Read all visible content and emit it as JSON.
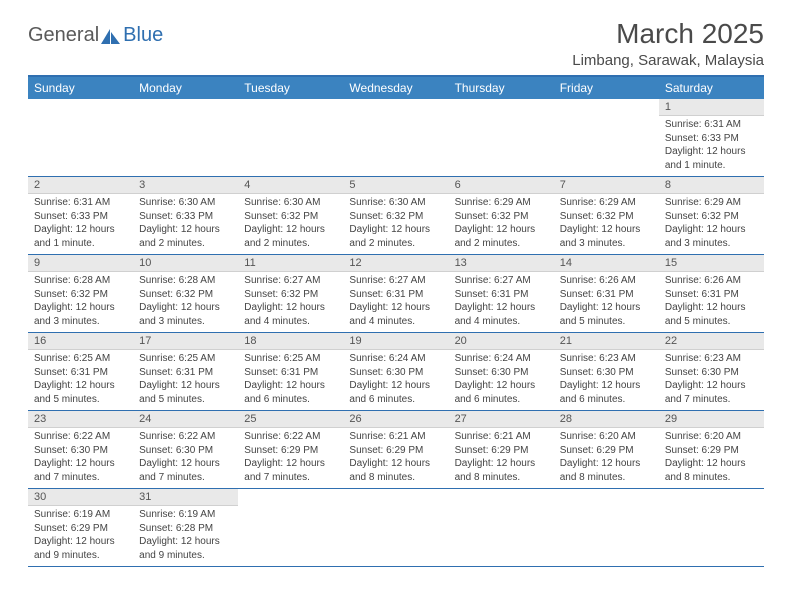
{
  "logo": {
    "part1": "General",
    "part2": "Blue",
    "icon_color": "#2f6fb0"
  },
  "title": "March 2025",
  "location": "Limbang, Sarawak, Malaysia",
  "day_headers": [
    "Sunday",
    "Monday",
    "Tuesday",
    "Wednesday",
    "Thursday",
    "Friday",
    "Saturday"
  ],
  "colors": {
    "header_bg": "#3b83c0",
    "header_text": "#ffffff",
    "rule": "#2f6fb0",
    "daynum_bg": "#e9e9e9"
  },
  "weeks": [
    [
      {
        "n": "",
        "sunrise": "",
        "sunset": "",
        "daylight": ""
      },
      {
        "n": "",
        "sunrise": "",
        "sunset": "",
        "daylight": ""
      },
      {
        "n": "",
        "sunrise": "",
        "sunset": "",
        "daylight": ""
      },
      {
        "n": "",
        "sunrise": "",
        "sunset": "",
        "daylight": ""
      },
      {
        "n": "",
        "sunrise": "",
        "sunset": "",
        "daylight": ""
      },
      {
        "n": "",
        "sunrise": "",
        "sunset": "",
        "daylight": ""
      },
      {
        "n": "1",
        "sunrise": "Sunrise: 6:31 AM",
        "sunset": "Sunset: 6:33 PM",
        "daylight": "Daylight: 12 hours and 1 minute."
      }
    ],
    [
      {
        "n": "2",
        "sunrise": "Sunrise: 6:31 AM",
        "sunset": "Sunset: 6:33 PM",
        "daylight": "Daylight: 12 hours and 1 minute."
      },
      {
        "n": "3",
        "sunrise": "Sunrise: 6:30 AM",
        "sunset": "Sunset: 6:33 PM",
        "daylight": "Daylight: 12 hours and 2 minutes."
      },
      {
        "n": "4",
        "sunrise": "Sunrise: 6:30 AM",
        "sunset": "Sunset: 6:32 PM",
        "daylight": "Daylight: 12 hours and 2 minutes."
      },
      {
        "n": "5",
        "sunrise": "Sunrise: 6:30 AM",
        "sunset": "Sunset: 6:32 PM",
        "daylight": "Daylight: 12 hours and 2 minutes."
      },
      {
        "n": "6",
        "sunrise": "Sunrise: 6:29 AM",
        "sunset": "Sunset: 6:32 PM",
        "daylight": "Daylight: 12 hours and 2 minutes."
      },
      {
        "n": "7",
        "sunrise": "Sunrise: 6:29 AM",
        "sunset": "Sunset: 6:32 PM",
        "daylight": "Daylight: 12 hours and 3 minutes."
      },
      {
        "n": "8",
        "sunrise": "Sunrise: 6:29 AM",
        "sunset": "Sunset: 6:32 PM",
        "daylight": "Daylight: 12 hours and 3 minutes."
      }
    ],
    [
      {
        "n": "9",
        "sunrise": "Sunrise: 6:28 AM",
        "sunset": "Sunset: 6:32 PM",
        "daylight": "Daylight: 12 hours and 3 minutes."
      },
      {
        "n": "10",
        "sunrise": "Sunrise: 6:28 AM",
        "sunset": "Sunset: 6:32 PM",
        "daylight": "Daylight: 12 hours and 3 minutes."
      },
      {
        "n": "11",
        "sunrise": "Sunrise: 6:27 AM",
        "sunset": "Sunset: 6:32 PM",
        "daylight": "Daylight: 12 hours and 4 minutes."
      },
      {
        "n": "12",
        "sunrise": "Sunrise: 6:27 AM",
        "sunset": "Sunset: 6:31 PM",
        "daylight": "Daylight: 12 hours and 4 minutes."
      },
      {
        "n": "13",
        "sunrise": "Sunrise: 6:27 AM",
        "sunset": "Sunset: 6:31 PM",
        "daylight": "Daylight: 12 hours and 4 minutes."
      },
      {
        "n": "14",
        "sunrise": "Sunrise: 6:26 AM",
        "sunset": "Sunset: 6:31 PM",
        "daylight": "Daylight: 12 hours and 5 minutes."
      },
      {
        "n": "15",
        "sunrise": "Sunrise: 6:26 AM",
        "sunset": "Sunset: 6:31 PM",
        "daylight": "Daylight: 12 hours and 5 minutes."
      }
    ],
    [
      {
        "n": "16",
        "sunrise": "Sunrise: 6:25 AM",
        "sunset": "Sunset: 6:31 PM",
        "daylight": "Daylight: 12 hours and 5 minutes."
      },
      {
        "n": "17",
        "sunrise": "Sunrise: 6:25 AM",
        "sunset": "Sunset: 6:31 PM",
        "daylight": "Daylight: 12 hours and 5 minutes."
      },
      {
        "n": "18",
        "sunrise": "Sunrise: 6:25 AM",
        "sunset": "Sunset: 6:31 PM",
        "daylight": "Daylight: 12 hours and 6 minutes."
      },
      {
        "n": "19",
        "sunrise": "Sunrise: 6:24 AM",
        "sunset": "Sunset: 6:30 PM",
        "daylight": "Daylight: 12 hours and 6 minutes."
      },
      {
        "n": "20",
        "sunrise": "Sunrise: 6:24 AM",
        "sunset": "Sunset: 6:30 PM",
        "daylight": "Daylight: 12 hours and 6 minutes."
      },
      {
        "n": "21",
        "sunrise": "Sunrise: 6:23 AM",
        "sunset": "Sunset: 6:30 PM",
        "daylight": "Daylight: 12 hours and 6 minutes."
      },
      {
        "n": "22",
        "sunrise": "Sunrise: 6:23 AM",
        "sunset": "Sunset: 6:30 PM",
        "daylight": "Daylight: 12 hours and 7 minutes."
      }
    ],
    [
      {
        "n": "23",
        "sunrise": "Sunrise: 6:22 AM",
        "sunset": "Sunset: 6:30 PM",
        "daylight": "Daylight: 12 hours and 7 minutes."
      },
      {
        "n": "24",
        "sunrise": "Sunrise: 6:22 AM",
        "sunset": "Sunset: 6:30 PM",
        "daylight": "Daylight: 12 hours and 7 minutes."
      },
      {
        "n": "25",
        "sunrise": "Sunrise: 6:22 AM",
        "sunset": "Sunset: 6:29 PM",
        "daylight": "Daylight: 12 hours and 7 minutes."
      },
      {
        "n": "26",
        "sunrise": "Sunrise: 6:21 AM",
        "sunset": "Sunset: 6:29 PM",
        "daylight": "Daylight: 12 hours and 8 minutes."
      },
      {
        "n": "27",
        "sunrise": "Sunrise: 6:21 AM",
        "sunset": "Sunset: 6:29 PM",
        "daylight": "Daylight: 12 hours and 8 minutes."
      },
      {
        "n": "28",
        "sunrise": "Sunrise: 6:20 AM",
        "sunset": "Sunset: 6:29 PM",
        "daylight": "Daylight: 12 hours and 8 minutes."
      },
      {
        "n": "29",
        "sunrise": "Sunrise: 6:20 AM",
        "sunset": "Sunset: 6:29 PM",
        "daylight": "Daylight: 12 hours and 8 minutes."
      }
    ],
    [
      {
        "n": "30",
        "sunrise": "Sunrise: 6:19 AM",
        "sunset": "Sunset: 6:29 PM",
        "daylight": "Daylight: 12 hours and 9 minutes."
      },
      {
        "n": "31",
        "sunrise": "Sunrise: 6:19 AM",
        "sunset": "Sunset: 6:28 PM",
        "daylight": "Daylight: 12 hours and 9 minutes."
      },
      {
        "n": "",
        "sunrise": "",
        "sunset": "",
        "daylight": ""
      },
      {
        "n": "",
        "sunrise": "",
        "sunset": "",
        "daylight": ""
      },
      {
        "n": "",
        "sunrise": "",
        "sunset": "",
        "daylight": ""
      },
      {
        "n": "",
        "sunrise": "",
        "sunset": "",
        "daylight": ""
      },
      {
        "n": "",
        "sunrise": "",
        "sunset": "",
        "daylight": ""
      }
    ]
  ]
}
